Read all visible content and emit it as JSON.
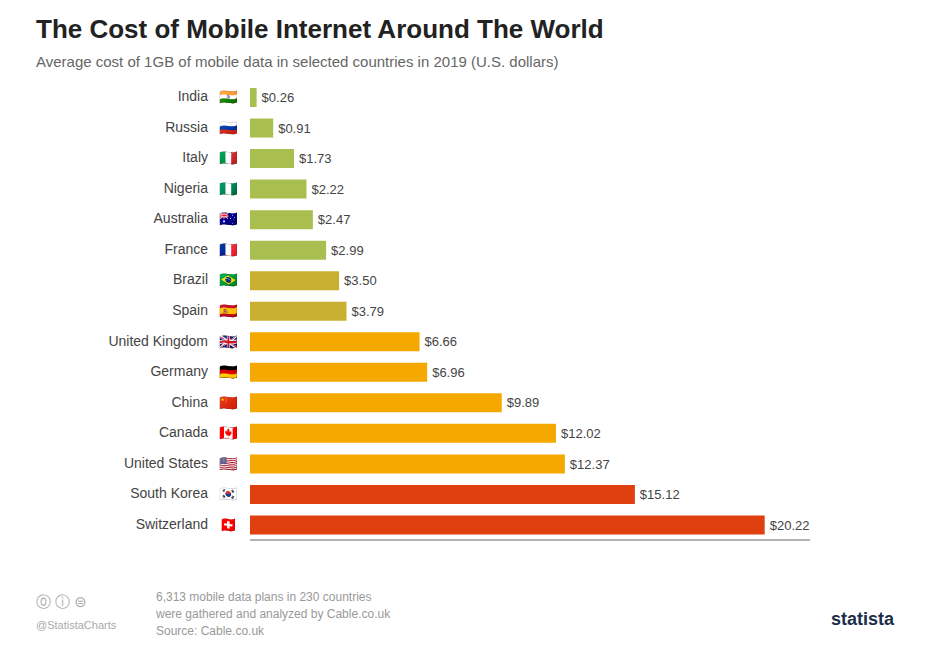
{
  "chart_data": {
    "type": "bar",
    "orientation": "horizontal",
    "title": "The Cost of Mobile Internet Around The World",
    "subtitle": "Average cost of 1GB of mobile data in selected countries in 2019 (U.S. dollars)",
    "categories": [
      "India",
      "Russia",
      "Italy",
      "Nigeria",
      "Australia",
      "France",
      "Brazil",
      "Spain",
      "United Kingdom",
      "Germany",
      "China",
      "Canada",
      "United States",
      "South Korea",
      "Switzerland"
    ],
    "category_flags": [
      "🇮🇳",
      "🇷🇺",
      "🇮🇹",
      "🇳🇬",
      "🇦🇺",
      "🇫🇷",
      "🇧🇷",
      "🇪🇸",
      "🇬🇧",
      "🇩🇪",
      "🇨🇳",
      "🇨🇦",
      "🇺🇸",
      "🇰🇷",
      "🇨🇭"
    ],
    "values": [
      0.26,
      0.91,
      1.73,
      2.22,
      2.47,
      2.99,
      3.5,
      3.79,
      6.66,
      6.96,
      9.89,
      12.02,
      12.37,
      15.12,
      20.22
    ],
    "value_labels": [
      "$0.26",
      "$0.91",
      "$1.73",
      "$2.22",
      "$2.47",
      "$2.99",
      "$3.50",
      "$3.79",
      "$6.66",
      "$6.96",
      "$9.89",
      "$12.02",
      "$12.37",
      "$15.12",
      "$20.22"
    ],
    "colors": [
      "#a8bf50",
      "#a8bf50",
      "#a8bf50",
      "#a8bf50",
      "#a8bf50",
      "#a8bf50",
      "#c8b030",
      "#c8b030",
      "#f5a800",
      "#f5a800",
      "#f5a800",
      "#f5a800",
      "#f5a800",
      "#e04010",
      "#e04010"
    ],
    "xlim": [
      0,
      22
    ],
    "data_labels": true,
    "grid": false,
    "tick_labels": "y",
    "annotations": [
      "6,313 mobile data plans in 230 countries",
      "were gathered and analyzed by Cable.co.uk",
      "Source: Cable.co.uk",
      "⓪ ⓘ ⊜",
      "@StatistaCharts",
      "statista"
    ]
  }
}
